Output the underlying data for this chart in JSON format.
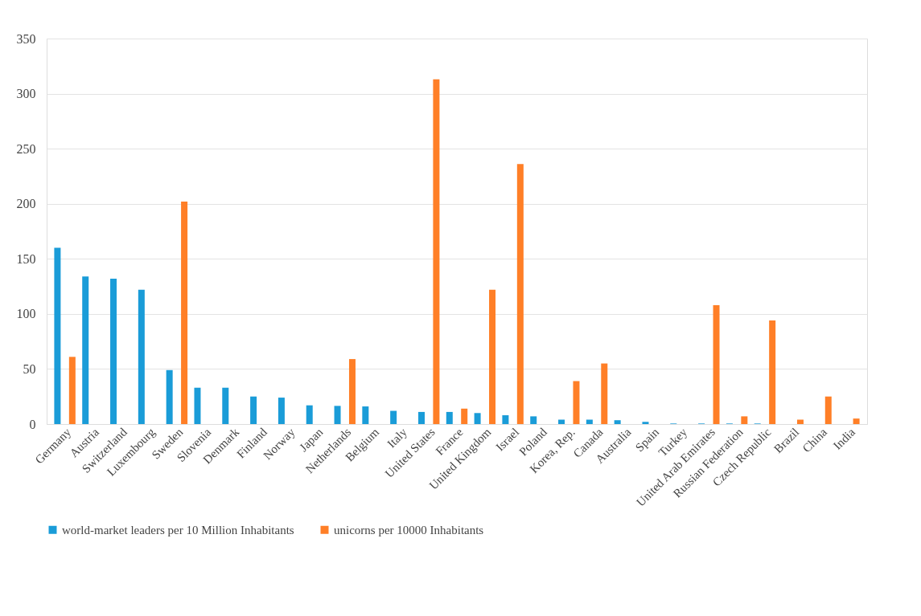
{
  "chart_data": {
    "type": "bar",
    "categories": [
      "Germany",
      "Austria",
      "Switzerland",
      "Luxembourg",
      "Sweden",
      "Slovenia",
      "Denmark",
      "Finland",
      "Norway",
      "Japan",
      "Netherlands",
      "Belgium",
      "Italy",
      "United States",
      "France",
      "United Kingdom",
      "Israel",
      "Poland",
      "Korea, Rep.",
      "Canada",
      "Australia",
      "Spain",
      "Turkey",
      "United Arab Emirates",
      "Russian Federation",
      "Czech Republic",
      "Brazil",
      "China",
      "India"
    ],
    "series": [
      {
        "name": "world-market leaders per 10 Million Inhabitants",
        "color": "#1a9cd8",
        "values": [
          160,
          134,
          132,
          122,
          49,
          33,
          33,
          25,
          24,
          17,
          16.5,
          16,
          12,
          11,
          11,
          10,
          8,
          7,
          4,
          4,
          3.5,
          2,
          0.5,
          0.5,
          0.5,
          0.5,
          null,
          null,
          null
        ]
      },
      {
        "name": "unicorns per 10000 Inhabitants",
        "color": "#ff7f27",
        "values": [
          61,
          null,
          null,
          null,
          202,
          null,
          null,
          null,
          null,
          null,
          59,
          null,
          null,
          313,
          14,
          122,
          236,
          null,
          39,
          55,
          null,
          null,
          null,
          108,
          7,
          94,
          4,
          25,
          5
        ]
      }
    ],
    "ylim": [
      0,
      350
    ],
    "yticks": [
      0,
      50,
      100,
      150,
      200,
      250,
      300,
      350
    ],
    "grid": "y",
    "legend": "bottom"
  }
}
